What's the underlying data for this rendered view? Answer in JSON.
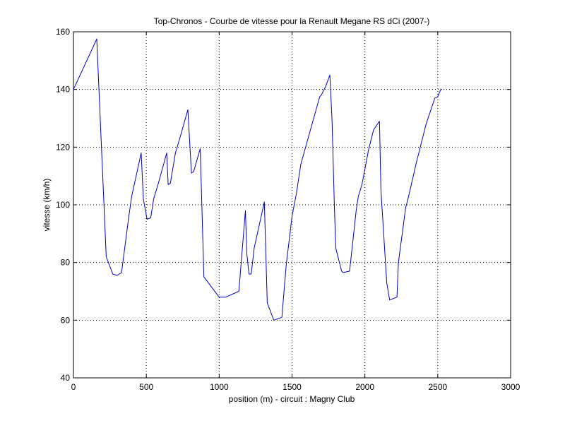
{
  "chart_data": {
    "type": "line",
    "title": "Top-Chronos - Courbe de vitesse pour la Renault Megane RS dCi (2007-)",
    "xlabel": "position (m) - circuit : Magny Club",
    "ylabel": "vitesse (km/h)",
    "xlim": [
      0,
      3000
    ],
    "ylim": [
      40,
      160
    ],
    "xticks": [
      0,
      500,
      1000,
      1500,
      2000,
      2500,
      3000
    ],
    "yticks": [
      40,
      60,
      80,
      100,
      120,
      140,
      160
    ],
    "xtick_labels": [
      "0",
      "500",
      "1000",
      "1500",
      "2000",
      "2500",
      "3000"
    ],
    "ytick_labels": [
      "40",
      "60",
      "80",
      "100",
      "120",
      "140",
      "160"
    ],
    "grid": true,
    "colors": {
      "line": "#0000cc",
      "axes": "#000000",
      "grid": "#000000"
    },
    "series": [
      {
        "x": [
          0,
          160,
          225,
          270,
          300,
          330,
          380,
          400,
          465,
          480,
          505,
          530,
          550,
          580,
          640,
          650,
          665,
          700,
          735,
          785,
          810,
          825,
          870,
          895,
          1000,
          1045,
          1135,
          1180,
          1190,
          1205,
          1220,
          1240,
          1310,
          1330,
          1375,
          1430,
          1460,
          1500,
          1530,
          1560,
          1690,
          1700,
          1730,
          1760,
          1775,
          1790,
          1800,
          1840,
          1850,
          1895,
          1940,
          1955,
          1980,
          2025,
          2060,
          2100,
          2110,
          2150,
          2170,
          2220,
          2230,
          2280,
          2300,
          2355,
          2420,
          2480,
          2500,
          2520,
          2530
        ],
        "y": [
          140,
          157.5,
          82,
          76,
          75.5,
          76.5,
          96,
          103,
          118,
          102,
          95,
          95.5,
          102,
          107,
          118,
          107,
          107.5,
          118,
          124,
          133,
          111,
          111.5,
          119.5,
          75,
          68,
          68,
          70,
          98,
          83,
          76,
          76,
          85,
          101,
          66,
          60,
          61,
          79,
          96,
          104,
          114,
          137.5,
          138,
          141,
          145,
          129,
          101,
          85,
          77,
          76.5,
          77,
          98,
          103,
          107,
          119,
          126,
          129,
          105,
          73,
          67,
          68,
          80,
          99,
          103,
          115,
          128,
          137,
          137.5,
          140,
          140
        ]
      }
    ]
  }
}
